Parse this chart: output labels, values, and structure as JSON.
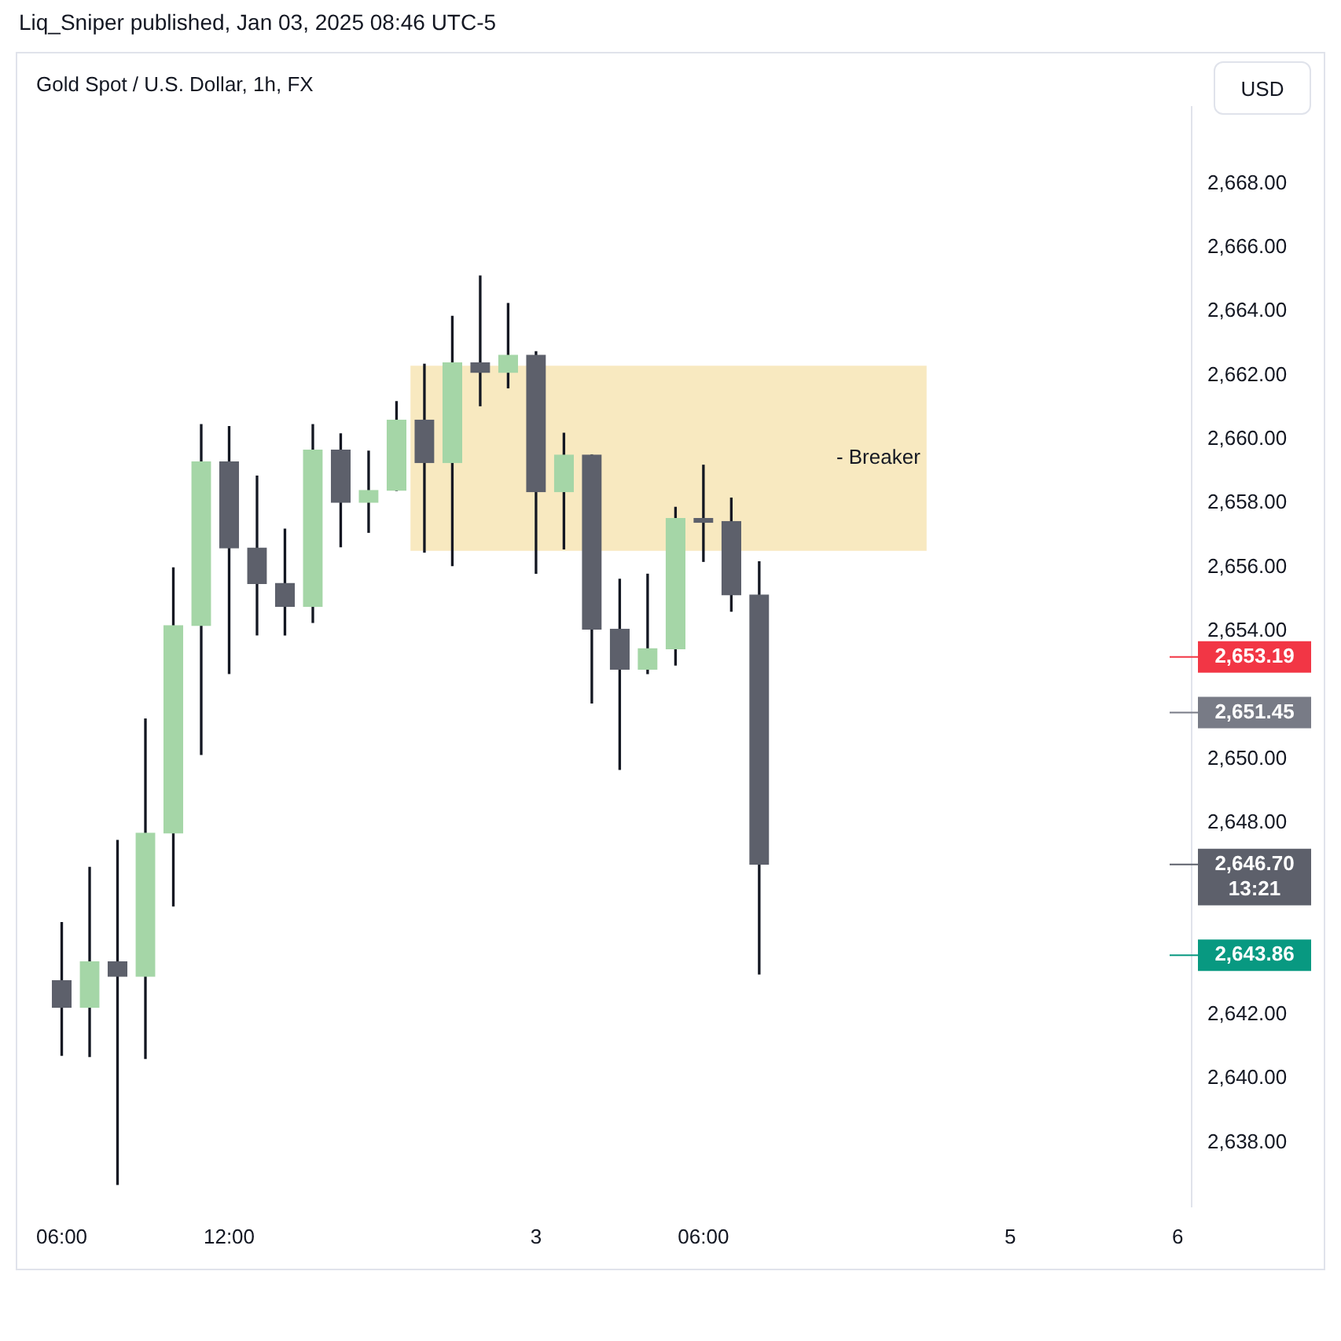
{
  "chart_data": {
    "type": "candlestick",
    "title": "Gold Spot / U.S. Dollar, 1h, FX",
    "ylabel": "USD",
    "annotations": [
      "Liq_Sniper published, Jan 03, 2025 08:46 UTC-5"
    ],
    "categories": [
      "06:00",
      null,
      null,
      null,
      null,
      null,
      "12:00",
      null,
      null,
      null,
      null,
      null,
      null,
      null,
      null,
      null,
      null,
      "3",
      null,
      null,
      null,
      null,
      null,
      "06:00",
      null,
      null,
      null,
      null,
      null,
      null,
      null,
      null,
      null,
      null,
      "5",
      null,
      null,
      null,
      null,
      null,
      "6"
    ],
    "ohlc": [
      [
        2643.06,
        2644.88,
        2640.73,
        2642.23
      ],
      [
        2642.23,
        2646.61,
        2640.69,
        2643.65
      ],
      [
        2643.65,
        2647.45,
        2636.69,
        2643.2
      ],
      [
        2643.2,
        2651.25,
        2640.63,
        2647.68
      ],
      [
        2647.68,
        2655.98,
        2645.4,
        2654.17
      ],
      [
        2654.17,
        2660.46,
        2650.14,
        2659.29
      ],
      [
        2659.29,
        2660.4,
        2652.67,
        2656.6
      ],
      [
        2656.6,
        2658.85,
        2653.88,
        2655.49
      ],
      [
        2655.49,
        2657.19,
        2653.88,
        2654.77
      ],
      [
        2654.77,
        2660.46,
        2654.27,
        2659.66
      ],
      [
        2659.66,
        2660.17,
        2656.64,
        2658.03
      ],
      [
        2658.03,
        2659.63,
        2657.09,
        2658.4
      ],
      [
        2658.4,
        2661.18,
        2658.4,
        2660.6
      ],
      [
        2660.6,
        2662.35,
        2656.47,
        2659.27
      ],
      [
        2659.27,
        2663.85,
        2656.05,
        2662.39
      ],
      [
        2662.39,
        2665.11,
        2661.05,
        2662.09
      ],
      [
        2662.09,
        2664.25,
        2661.61,
        2662.63
      ],
      [
        2662.63,
        2662.74,
        2655.81,
        2658.36
      ],
      [
        2658.36,
        2660.19,
        2656.57,
        2659.51
      ],
      [
        2659.51,
        2659.51,
        2651.75,
        2654.06
      ],
      [
        2654.06,
        2655.62,
        2649.67,
        2652.81
      ],
      [
        2652.81,
        2655.78,
        2652.67,
        2653.45
      ],
      [
        2653.45,
        2657.87,
        2652.94,
        2657.52
      ],
      [
        2657.52,
        2659.19,
        2656.18,
        2657.4
      ],
      [
        2657.43,
        2658.16,
        2654.62,
        2655.13
      ],
      [
        2655.13,
        2656.17,
        2643.27,
        2646.7
      ],
      null,
      null,
      null,
      null,
      null,
      null,
      null,
      null,
      null,
      null,
      null,
      null,
      null,
      null,
      null
    ],
    "colors": [
      "#5d606b",
      "#a5d6a7",
      "#5d606b",
      "#a5d6a7",
      "#a5d6a7",
      "#a5d6a7",
      "#5d606b",
      "#5d606b",
      "#5d606b",
      "#a5d6a7",
      "#5d606b",
      "#a5d6a7",
      "#a5d6a7",
      "#5d606b",
      "#a5d6a7",
      "#5d606b",
      "#a5d6a7",
      "#5d606b",
      "#a5d6a7",
      "#5d606b",
      "#5d606b",
      "#a5d6a7",
      "#a5d6a7",
      "#5d606b",
      "#5d606b",
      "#5d606b",
      null,
      null,
      null,
      null,
      null,
      null,
      null,
      null,
      null,
      null,
      null,
      null,
      null,
      null,
      null
    ],
    "ylim": [
      2636,
      2670.4
    ],
    "yticks": [
      {
        "value": 2638,
        "label": "2,638.00"
      },
      {
        "value": 2640,
        "label": "2,640.00"
      },
      {
        "value": 2642,
        "label": "2,642.00"
      },
      {
        "value": 2648,
        "label": "2,648.00"
      },
      {
        "value": 2650,
        "label": "2,650.00"
      },
      {
        "value": 2654,
        "label": "2,654.00"
      },
      {
        "value": 2656,
        "label": "2,656.00"
      },
      {
        "value": 2658,
        "label": "2,658.00"
      },
      {
        "value": 2660,
        "label": "2,660.00"
      },
      {
        "value": 2662,
        "label": "2,662.00"
      },
      {
        "value": 2664,
        "label": "2,664.00"
      },
      {
        "value": 2666,
        "label": "2,666.00"
      },
      {
        "value": 2668,
        "label": "2,668.00"
      }
    ],
    "bands": [
      {
        "axis": "y",
        "from": 2656.51,
        "to": 2662.3,
        "label": "- Breaker",
        "color": "#f8e9c0"
      }
    ],
    "ref_lines": [
      {
        "axis": "y",
        "value": 2653.19,
        "label": "2,653.19",
        "color": "#f23645"
      },
      {
        "axis": "y",
        "value": 2651.45,
        "label": "2,651.45",
        "color": "#787b86"
      },
      {
        "axis": "y",
        "value": 2646.7,
        "label": "2,646.70\n13:21",
        "color": "#5d606b"
      },
      {
        "axis": "y",
        "value": 2643.86,
        "label": "2,643.86",
        "color": "#089981"
      }
    ],
    "grid": false,
    "legend": false
  }
}
